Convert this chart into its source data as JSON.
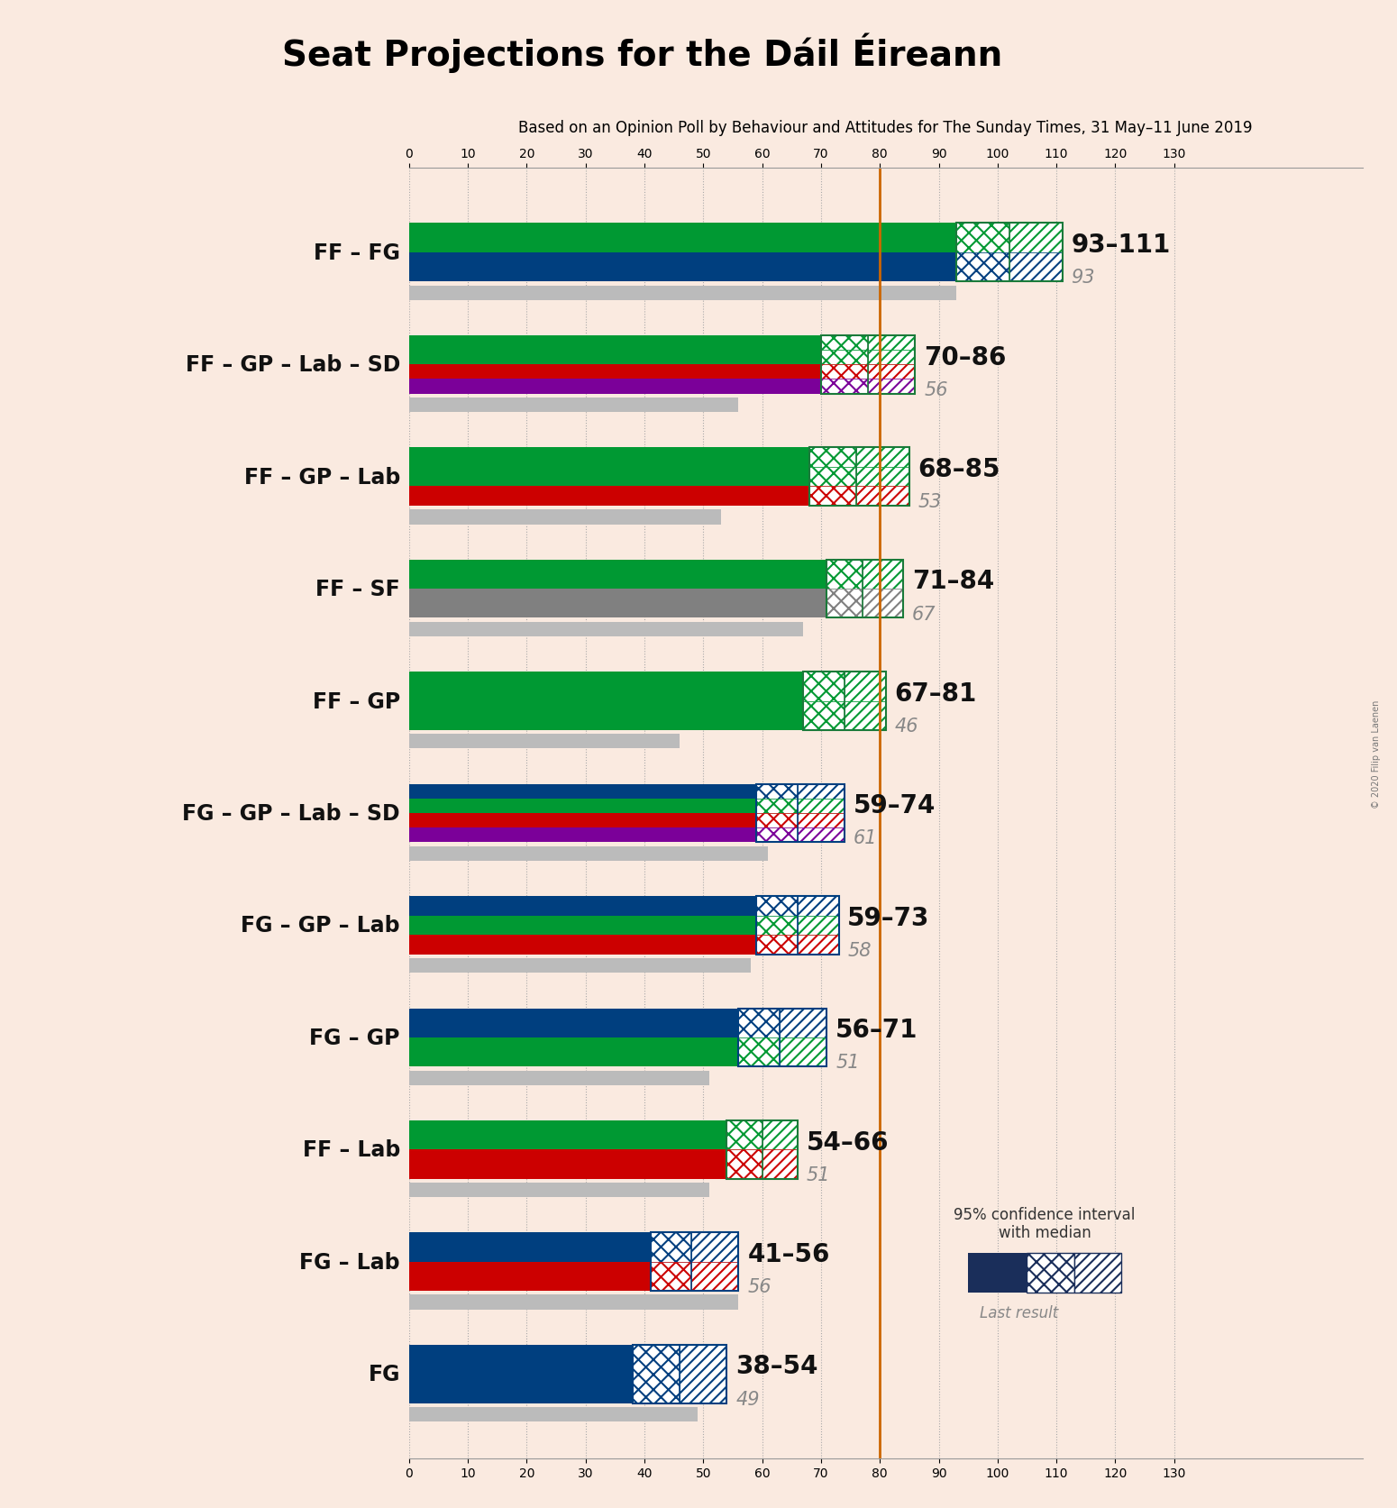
{
  "title": "Seat Projections for the Dáil Éireann",
  "subtitle": "Based on an Opinion Poll by Behaviour and Attitudes for The Sunday Times, 31 May–11 June 2019",
  "background_color": "#faeae0",
  "copyright": "© 2020 Filip van Laenen",
  "majority_line": 80,
  "x_max": 130,
  "x_min": 0,
  "x_ticks": [
    0,
    10,
    20,
    30,
    40,
    50,
    60,
    70,
    80,
    90,
    100,
    110,
    120,
    130
  ],
  "coalitions": [
    {
      "name": "FF – FG",
      "low": 93,
      "high": 111,
      "median": 102,
      "last": 93,
      "parties": [
        "FF",
        "FG"
      ],
      "range_color": "#1a7a3a"
    },
    {
      "name": "FF – GP – Lab – SD",
      "low": 70,
      "high": 86,
      "median": 78,
      "last": 56,
      "parties": [
        "FF",
        "GP",
        "Lab",
        "SD"
      ],
      "range_color": "#1a7a3a"
    },
    {
      "name": "FF – GP – Lab",
      "low": 68,
      "high": 85,
      "median": 76,
      "last": 53,
      "parties": [
        "FF",
        "GP",
        "Lab"
      ],
      "range_color": "#1a7a3a"
    },
    {
      "name": "FF – SF",
      "low": 71,
      "high": 84,
      "median": 77,
      "last": 67,
      "parties": [
        "FF",
        "SF"
      ],
      "range_color": "#1a7a3a"
    },
    {
      "name": "FF – GP",
      "low": 67,
      "high": 81,
      "median": 74,
      "last": 46,
      "parties": [
        "FF",
        "GP"
      ],
      "range_color": "#1a7a3a"
    },
    {
      "name": "FG – GP – Lab – SD",
      "low": 59,
      "high": 74,
      "median": 66,
      "last": 61,
      "parties": [
        "FG",
        "GP",
        "Lab",
        "SD"
      ],
      "range_color": "#003f7f"
    },
    {
      "name": "FG – GP – Lab",
      "low": 59,
      "high": 73,
      "median": 66,
      "last": 58,
      "parties": [
        "FG",
        "GP",
        "Lab"
      ],
      "range_color": "#003f7f"
    },
    {
      "name": "FG – GP",
      "low": 56,
      "high": 71,
      "median": 63,
      "last": 51,
      "parties": [
        "FG",
        "GP"
      ],
      "range_color": "#003f7f"
    },
    {
      "name": "FF – Lab",
      "low": 54,
      "high": 66,
      "median": 60,
      "last": 51,
      "parties": [
        "FF",
        "Lab"
      ],
      "range_color": "#1a7a3a"
    },
    {
      "name": "FG – Lab",
      "low": 41,
      "high": 56,
      "median": 48,
      "last": 56,
      "parties": [
        "FG",
        "Lab"
      ],
      "range_color": "#003f7f"
    },
    {
      "name": "FG",
      "low": 38,
      "high": 54,
      "median": 46,
      "last": 49,
      "parties": [
        "FG"
      ],
      "range_color": "#003f7f"
    }
  ],
  "party_colors": {
    "FF": "#009933",
    "FG": "#003f7f",
    "GP": "#009933",
    "Lab": "#cc0000",
    "SD": "#7b0099",
    "SF": "#808080"
  },
  "range_label_fontsize": 20,
  "last_label_fontsize": 15,
  "y_label_fontsize": 17
}
